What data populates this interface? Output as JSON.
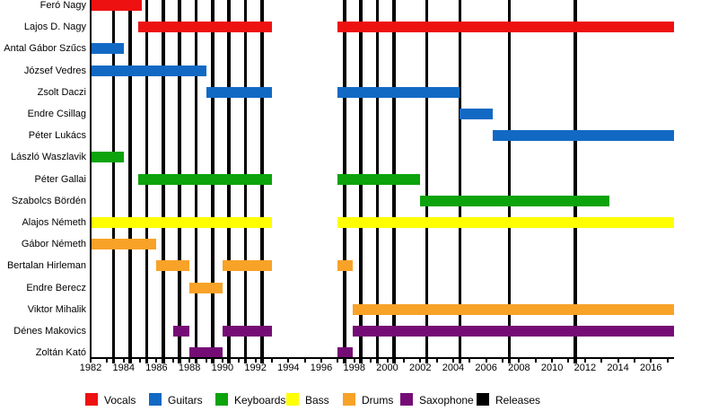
{
  "chart_data": {
    "type": "timeline",
    "description": "Band member tenure timeline with album release markers",
    "x_axis": {
      "min": 1982,
      "max": 2017.4,
      "tick_interval": 1,
      "label_interval": 2,
      "first_label": 1982,
      "last_label": 2016
    },
    "colors": {
      "Vocals": "#EE1111",
      "Guitars": "#1269C4",
      "Keyboards": "#0CA30C",
      "Bass": "#FFFF00",
      "Drums": "#F8A228",
      "Saxophone": "#750C75",
      "Releases": "#000000"
    },
    "rows": [
      {
        "name": "Feró Nagy",
        "instrument": "Vocals",
        "periods": [
          [
            1982,
            1985.1
          ]
        ]
      },
      {
        "name": "Lajos D. Nagy",
        "instrument": "Vocals",
        "periods": [
          [
            1984.9,
            1993
          ],
          [
            1997,
            2017.4
          ]
        ]
      },
      {
        "name": "Antal Gábor Szűcs",
        "instrument": "Guitars",
        "periods": [
          [
            1982,
            1984
          ]
        ]
      },
      {
        "name": "József Vedres",
        "instrument": "Guitars",
        "periods": [
          [
            1982,
            1989
          ]
        ]
      },
      {
        "name": "Zsolt Daczi",
        "instrument": "Guitars",
        "periods": [
          [
            1989,
            1993
          ],
          [
            1997,
            2004.4
          ]
        ]
      },
      {
        "name": "Endre Csillag",
        "instrument": "Guitars",
        "periods": [
          [
            2004.4,
            2006.4
          ]
        ]
      },
      {
        "name": "Péter Lukács",
        "instrument": "Guitars",
        "periods": [
          [
            2006.4,
            2017.4
          ]
        ]
      },
      {
        "name": "László Waszlavik",
        "instrument": "Keyboards",
        "periods": [
          [
            1982,
            1984
          ]
        ]
      },
      {
        "name": "Péter Gallai",
        "instrument": "Keyboards",
        "periods": [
          [
            1984.9,
            1993
          ],
          [
            1997,
            2002
          ]
        ]
      },
      {
        "name": "Szabolcs Bördén",
        "instrument": "Keyboards",
        "periods": [
          [
            2002,
            2013.5
          ]
        ]
      },
      {
        "name": "Alajos Németh",
        "instrument": "Bass",
        "periods": [
          [
            1982,
            1993
          ],
          [
            1997,
            2017.4
          ]
        ]
      },
      {
        "name": "Gábor Németh",
        "instrument": "Drums",
        "periods": [
          [
            1982,
            1986
          ]
        ]
      },
      {
        "name": "Bertalan Hirleman",
        "instrument": "Drums",
        "periods": [
          [
            1986,
            1988
          ],
          [
            1990,
            1993
          ],
          [
            1997,
            1997.9
          ]
        ]
      },
      {
        "name": "Endre Berecz",
        "instrument": "Drums",
        "periods": [
          [
            1988,
            1990
          ]
        ]
      },
      {
        "name": "Viktor Mihalik",
        "instrument": "Drums",
        "periods": [
          [
            1997.9,
            2017.4
          ]
        ]
      },
      {
        "name": "Dénes Makovics",
        "instrument": "Saxophone",
        "periods": [
          [
            1987,
            1988
          ],
          [
            1990,
            1993
          ],
          [
            1997.9,
            2017.4
          ]
        ]
      },
      {
        "name": "Zoltán Kató",
        "instrument": "Saxophone",
        "periods": [
          [
            1988,
            1990
          ],
          [
            1997,
            1997.9
          ]
        ]
      }
    ],
    "releases": [
      1983.4,
      1984.4,
      1985.4,
      1986.4,
      1987.4,
      1988.4,
      1989.4,
      1990.4,
      1991.4,
      1992.4,
      1997.4,
      1998.4,
      1999.4,
      2000.4,
      2002.4,
      2004.4,
      2007.4,
      2011.4
    ],
    "legend": [
      "Vocals",
      "Guitars",
      "Keyboards",
      "Bass",
      "Drums",
      "Saxophone",
      "Releases"
    ]
  }
}
